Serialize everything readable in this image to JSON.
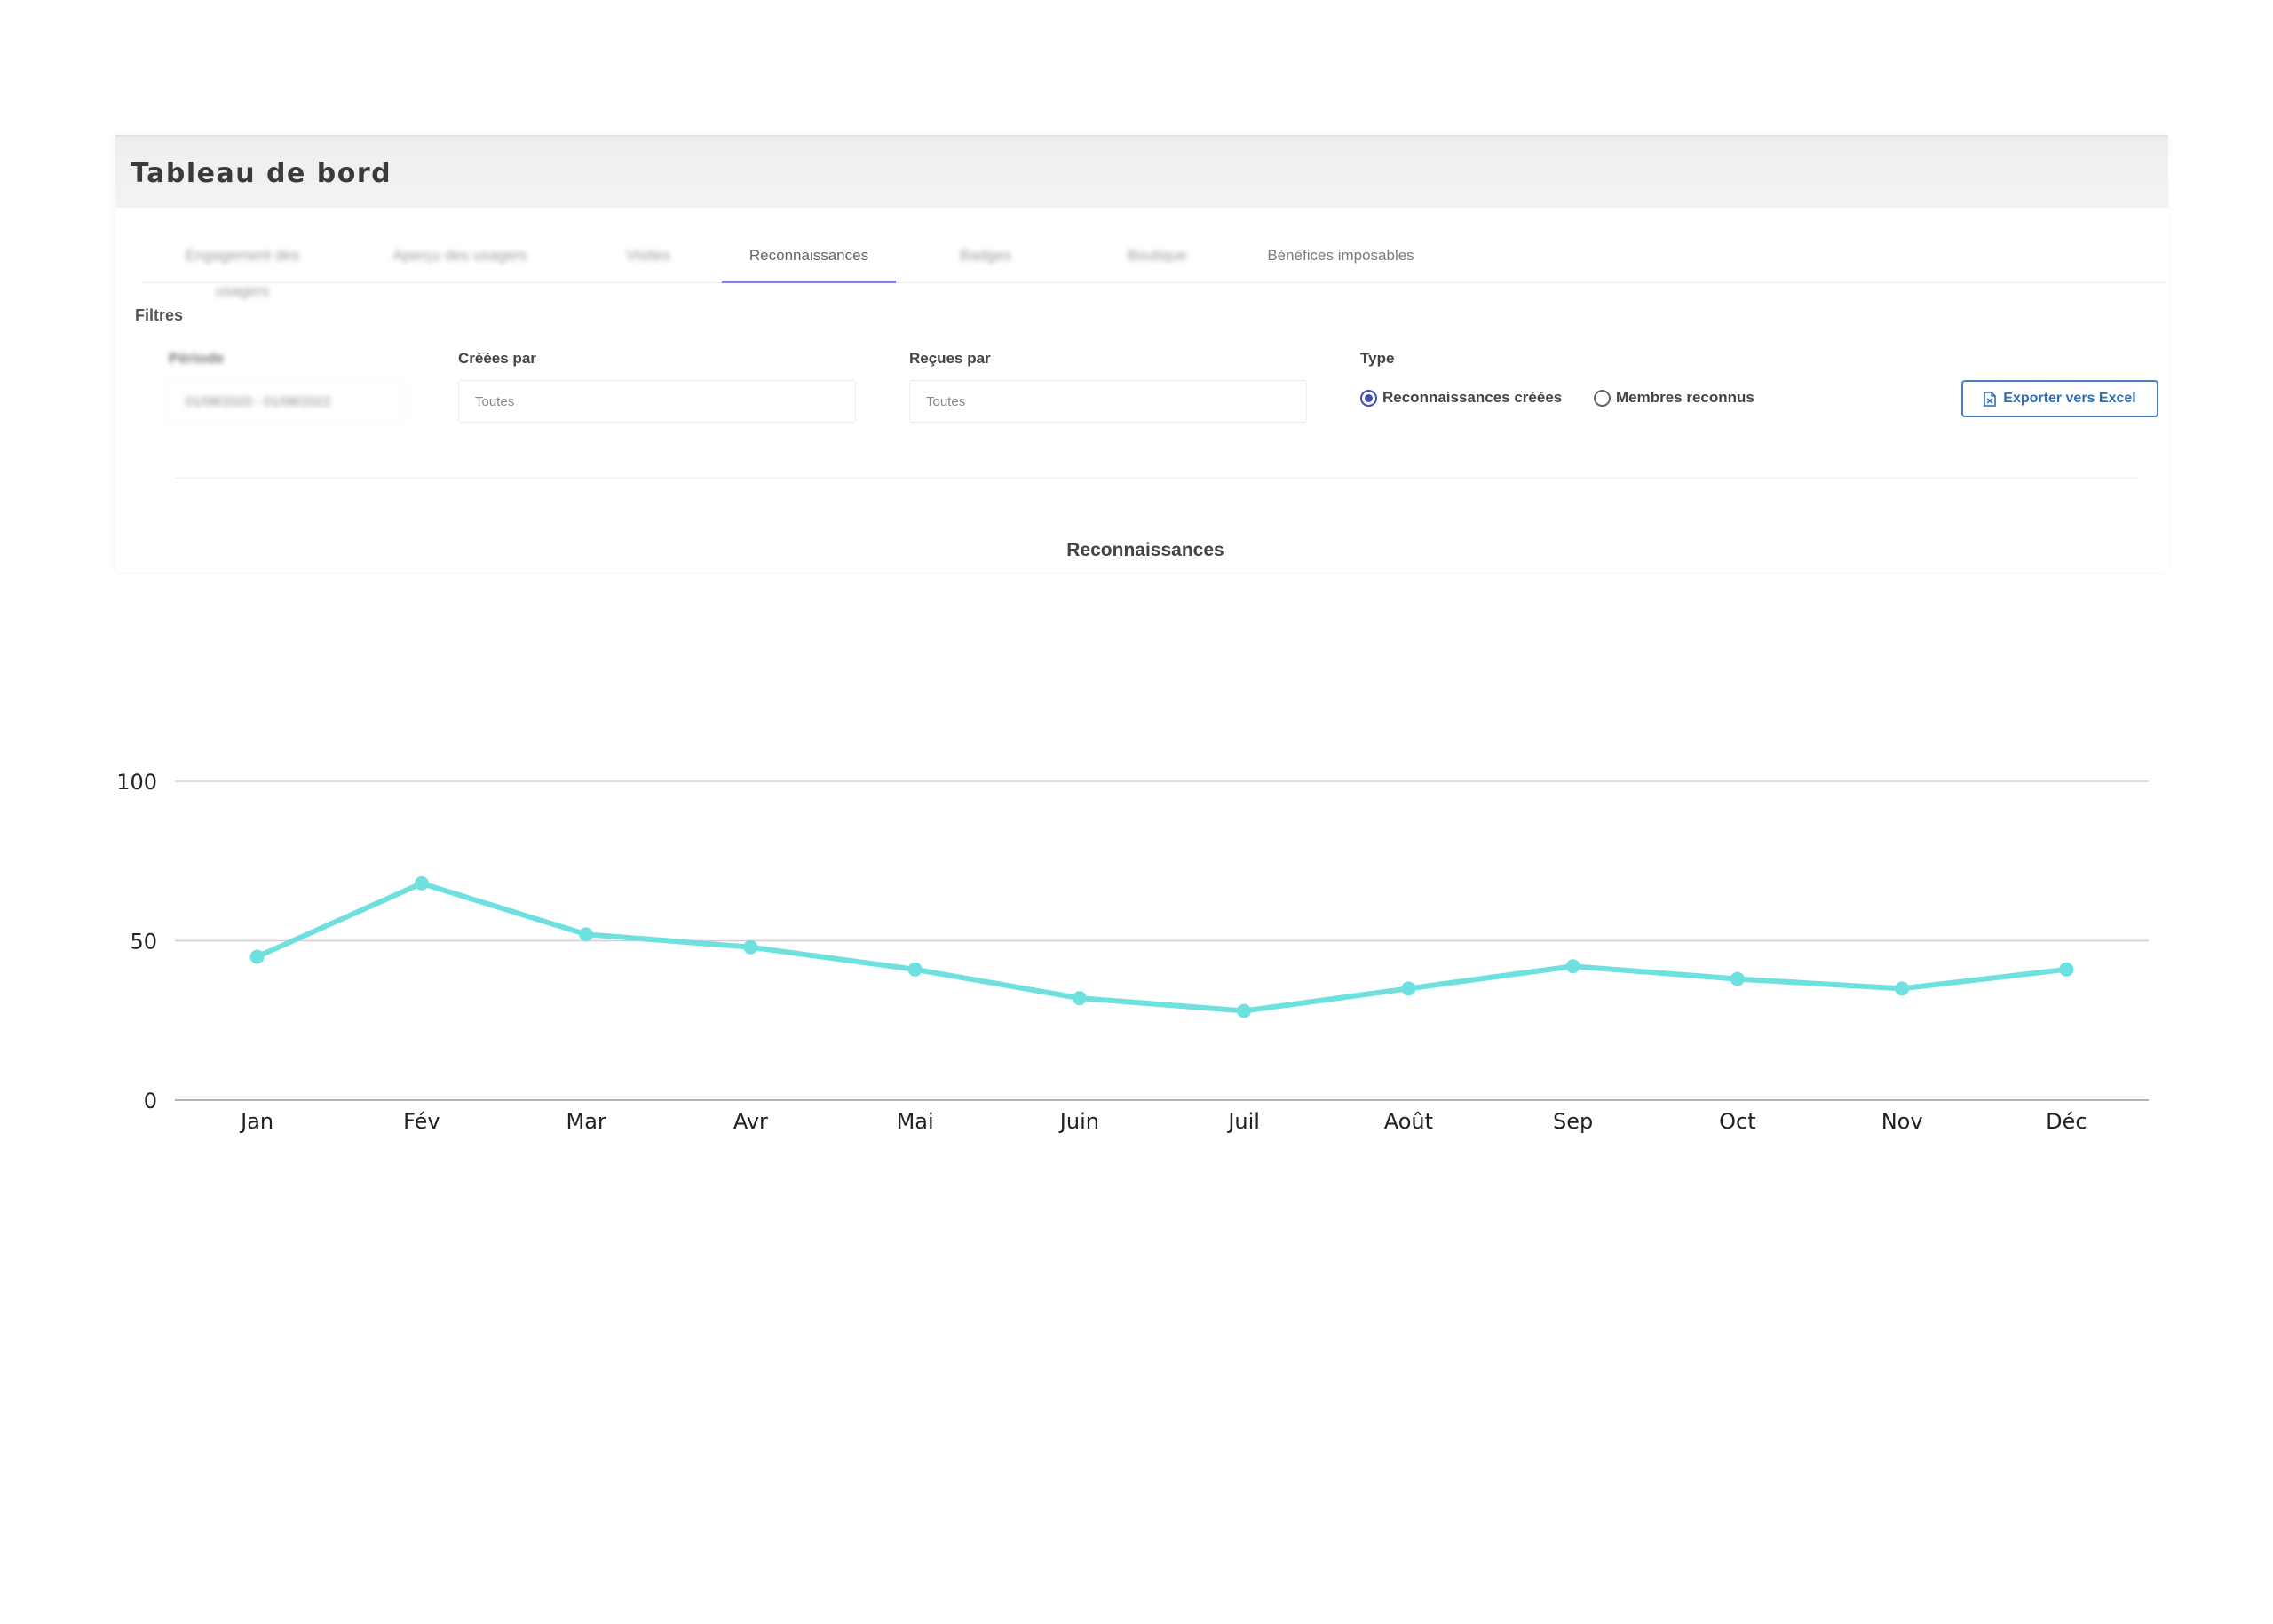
{
  "header": {
    "title": "Tableau de bord"
  },
  "tabs": [
    {
      "label": "Engagement des usagers",
      "state": "blurred"
    },
    {
      "label": "Aperçu des usagers",
      "state": "blurred"
    },
    {
      "label": "Visites",
      "state": "blurred"
    },
    {
      "label": "Reconnaissances",
      "state": "active"
    },
    {
      "label": "Badges",
      "state": "blurred"
    },
    {
      "label": "Boutique",
      "state": "blurred"
    },
    {
      "label": "Bénéfices imposables",
      "state": "normal"
    }
  ],
  "filters": {
    "title": "Filtres",
    "period": {
      "label": "Période",
      "value": "01/08/2020 - 01/08/2022"
    },
    "created_by": {
      "label": "Créées par",
      "value": "Toutes"
    },
    "received_by": {
      "label": "Reçues par",
      "value": "Toutes"
    },
    "type": {
      "label": "Type",
      "options": [
        {
          "label": "Reconnaissances créées",
          "checked": true
        },
        {
          "label": "Membres reconnus",
          "checked": false
        }
      ]
    },
    "export_label": "Exporter vers Excel"
  },
  "colors": {
    "accent": "#8a83e0",
    "radio": "#3f51b5",
    "export": "#2f6db5",
    "line": "#6fe0e0"
  },
  "chart_data": {
    "type": "line",
    "title": "Reconnaissances",
    "categories": [
      "Jan",
      "Fév",
      "Mar",
      "Avr",
      "Mai",
      "Juin",
      "Juil",
      "Août",
      "Sep",
      "Oct",
      "Nov",
      "Déc"
    ],
    "series": [
      {
        "values": [
          45,
          68,
          52,
          48,
          41,
          32,
          28,
          35,
          42,
          38,
          35,
          41
        ]
      }
    ],
    "yticks": [
      0,
      50,
      100
    ],
    "ylim": [
      0,
      100
    ],
    "grid": true,
    "xlabel": "",
    "ylabel": ""
  }
}
